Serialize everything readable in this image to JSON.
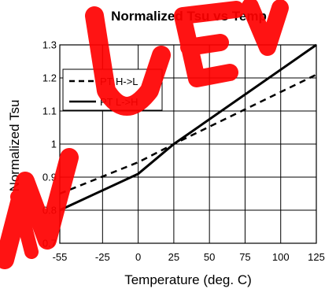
{
  "chart_data": {
    "type": "line",
    "title": "Normalized Tsu vs Temp",
    "xlabel": "Temperature (deg. C)",
    "ylabel": "Normalized Tsu",
    "x_ticks": [
      "-55",
      "-25",
      "0",
      "25",
      "50",
      "75",
      "100",
      "125"
    ],
    "x_tick_values": [
      -55,
      -25,
      0,
      25,
      50,
      75,
      100,
      125
    ],
    "y_ticks": [
      "0.7",
      "0.8",
      "0.9",
      "1",
      "1.1",
      "1.2",
      "1.3"
    ],
    "y_tick_values": [
      0.7,
      0.8,
      0.9,
      1.0,
      1.1,
      1.2,
      1.3
    ],
    "xlim": [
      -55,
      125
    ],
    "ylim": [
      0.7,
      1.3
    ],
    "grid": true,
    "legend_position": "upper-left",
    "series": [
      {
        "name": "PT H->L",
        "style": "dashed",
        "color": "#000000",
        "x": [
          -55,
          0,
          25,
          125
        ],
        "y": [
          0.85,
          0.945,
          1.0,
          1.21
        ]
      },
      {
        "name": "PT L->H",
        "style": "solid",
        "color": "#000000",
        "x": [
          -55,
          0,
          25,
          125
        ],
        "y": [
          0.8,
          0.91,
          1.0,
          1.3
        ]
      }
    ]
  },
  "watermark": {
    "text": "NUEV",
    "color": "#ff0000"
  }
}
